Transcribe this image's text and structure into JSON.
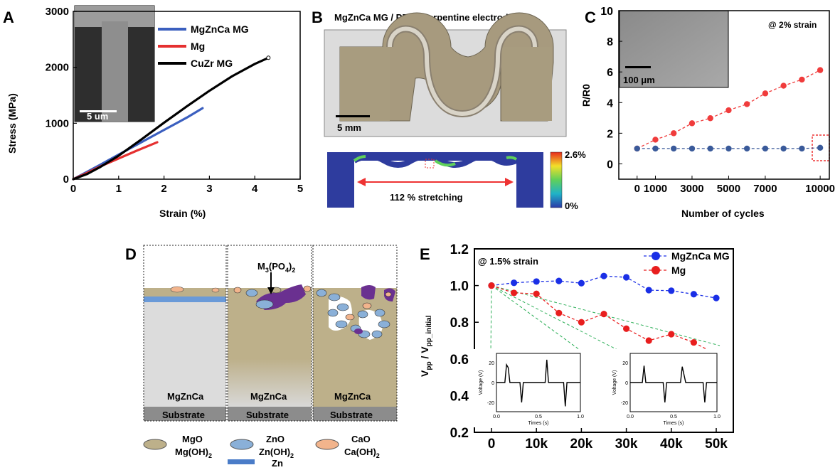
{
  "panel_labels": {
    "a": "A",
    "b": "B",
    "c": "C",
    "d": "D",
    "e": "E"
  },
  "chart_data": [
    {
      "id": "A",
      "type": "line",
      "title": "",
      "xlabel": "Strain (%)",
      "ylabel": "Stress (MPa)",
      "xlim": [
        0,
        5
      ],
      "ylim": [
        0,
        3000
      ],
      "xticks": [
        0,
        1,
        2,
        3,
        4,
        5
      ],
      "yticks": [
        0,
        1000,
        2000,
        3000
      ],
      "grid": false,
      "legend": "top-right",
      "inset_scale_label": "5 um",
      "series": [
        {
          "name": "MgZnCa MG",
          "color": "#3b5fbf",
          "x": [
            0,
            0.3,
            0.6,
            1.0,
            1.5,
            2.0,
            2.5,
            2.85
          ],
          "y": [
            0,
            130,
            260,
            440,
            660,
            880,
            1100,
            1270
          ]
        },
        {
          "name": "Mg",
          "color": "#e53030",
          "x": [
            0,
            0.3,
            0.6,
            1.0,
            1.4,
            1.85
          ],
          "y": [
            0,
            110,
            230,
            370,
            510,
            660
          ]
        },
        {
          "name": "CuZr MG",
          "color": "#000000",
          "x": [
            0,
            0.3,
            0.6,
            1.0,
            1.5,
            2.0,
            2.5,
            3.0,
            3.5,
            4.0,
            4.3
          ],
          "y": [
            0,
            90,
            220,
            420,
            710,
            1010,
            1300,
            1580,
            1840,
            2060,
            2170
          ]
        }
      ]
    },
    {
      "id": "C",
      "type": "line",
      "title": "",
      "xlabel": "Number of cycles",
      "ylabel": "R/R0",
      "xlim": [
        -1000,
        10500
      ],
      "ylim": [
        -1,
        10
      ],
      "xticks": [
        0,
        1000,
        3000,
        5000,
        7000,
        10000
      ],
      "yticks": [
        0,
        2,
        4,
        6,
        8,
        10
      ],
      "grid": false,
      "annotation": "@ 2% strain",
      "inset_scale_label": "100 μm",
      "series": [
        {
          "name": "",
          "color": "#f03c3c",
          "x": [
            0,
            1000,
            2000,
            3000,
            4000,
            5000,
            6000,
            7000,
            8000,
            9000,
            10000
          ],
          "y": [
            1.0,
            1.58,
            2.0,
            2.65,
            2.98,
            3.5,
            3.9,
            4.6,
            5.1,
            5.5,
            6.12
          ]
        },
        {
          "name": "",
          "color": "#3a5a9a",
          "x": [
            0,
            1000,
            2000,
            3000,
            4000,
            5000,
            6000,
            7000,
            8000,
            9000,
            10000
          ],
          "y": [
            1.0,
            1.0,
            1.0,
            1.0,
            1.0,
            1.0,
            1.0,
            1.0,
            1.0,
            1.0,
            1.05
          ]
        }
      ]
    },
    {
      "id": "E",
      "type": "line",
      "title": "",
      "xlabel": "",
      "ylabel_main": "V",
      "ylabel_sub1": "pp",
      "ylabel_mid": " / V",
      "ylabel_sub2": "pp_initial",
      "xlim": [
        0,
        50
      ],
      "ylim": [
        0.2,
        1.2
      ],
      "xtick_labels": [
        "0",
        "10k",
        "20k",
        "30k",
        "40k",
        "50k"
      ],
      "xtick_values": [
        0,
        10,
        20,
        30,
        40,
        50
      ],
      "yticks": [
        0.2,
        0.4,
        0.6,
        0.8,
        1.0,
        1.2
      ],
      "grid": false,
      "legend": "top-right",
      "annotation": "@ 1.5% strain",
      "series": [
        {
          "name": "MgZnCa MG",
          "color": "#1a2fe6",
          "x": [
            0,
            5,
            10,
            15,
            20,
            25,
            30,
            35,
            40,
            45,
            50
          ],
          "y": [
            1.0,
            1.015,
            1.022,
            1.025,
            1.013,
            1.052,
            1.045,
            0.975,
            0.972,
            0.953,
            0.932
          ]
        },
        {
          "name": "Mg",
          "color": "#e81e1e",
          "x": [
            0,
            5,
            10,
            15,
            20,
            25,
            30,
            35,
            40,
            45,
            50
          ],
          "y": [
            1.0,
            0.96,
            0.955,
            0.85,
            0.8,
            0.845,
            0.765,
            0.7,
            0.735,
            0.69,
            0.625
          ]
        }
      ],
      "insets": [
        {
          "ylabel": "Voltage (V)",
          "xlabel": "Times (s)",
          "yticks": [
            "20",
            "0",
            "-20"
          ],
          "xticks": [
            "0.0",
            "0.5",
            "1.0"
          ]
        },
        {
          "ylabel": "Voltage (V)",
          "xlabel": "Times (s)",
          "yticks": [
            "20",
            "0",
            "-20"
          ],
          "xticks": [
            "0.0",
            "0.5",
            "1.0"
          ]
        }
      ]
    }
  ],
  "panel_b": {
    "title": "MgZnCa MG / PBAT serpentine electrode",
    "scale_label": "5 mm",
    "stretch_label": "112 % stretching",
    "colorbar_max": "2.6%",
    "colorbar_min": "0%"
  },
  "panel_d": {
    "layer_labels": [
      "MgZnCa",
      "MgZnCa",
      "MgZnCa"
    ],
    "substrate_labels": [
      "Substrate",
      "Substrate",
      "Substrate"
    ],
    "arrow_label_main": "M",
    "arrow_label_sub1": "3",
    "arrow_label_mid": "(PO",
    "arrow_label_sub2": "4",
    "arrow_label_end": ")",
    "arrow_label_sub3": "2",
    "legend": {
      "mgo_1": "MgO",
      "mgo_2a": "Mg(OH)",
      "mgo_2b": "2",
      "zno_1": "ZnO",
      "zno_2a": "Zn(OH)",
      "zno_2b": "2",
      "cao_1": "CaO",
      "cao_2a": "Ca(OH)",
      "cao_2b": "2",
      "zn": "Zn"
    }
  }
}
